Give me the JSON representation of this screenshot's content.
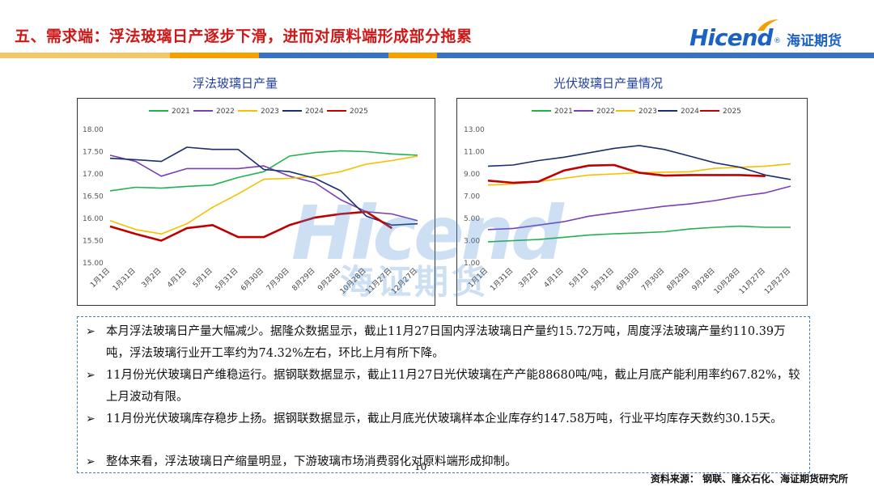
{
  "slide": {
    "title": "五、需求端：浮法玻璃日产逐步下滑，进而对原料端形成部分拖累",
    "page_number": "10",
    "source": "资料来源：  钢联、隆众石化、海证期货研究所"
  },
  "logo": {
    "text": "Hicend",
    "reg": "®",
    "cn": "海证期货"
  },
  "watermark": {
    "text": "Hicend",
    "cn": "海证期货"
  },
  "colors": {
    "s2021": "#22b24c",
    "s2022": "#7b3fb5",
    "s2023": "#f5c000",
    "s2024": "#1a2f6e",
    "s2025": "#c00000",
    "title_red": "#d01818",
    "accent_blue": "#1b62c4"
  },
  "chart_data": [
    {
      "type": "line",
      "title": "浮法玻璃日产量",
      "x": [
        "1月1日",
        "1月31日",
        "3月2日",
        "4月1日",
        "5月1日",
        "5月31日",
        "6月30日",
        "7月30日",
        "8月29日",
        "9月28日",
        "10月28日",
        "11月27日",
        "12月27日"
      ],
      "ylim": [
        15.0,
        18.0
      ],
      "yticks": [
        "15.00",
        "15.50",
        "16.00",
        "16.50",
        "17.00",
        "17.50",
        "18.00"
      ],
      "legend_position": "top",
      "grid": false,
      "series": [
        {
          "name": "2021",
          "color": "#22b24c",
          "values": [
            16.62,
            16.7,
            16.68,
            16.72,
            16.75,
            16.92,
            17.05,
            17.4,
            17.48,
            17.52,
            17.5,
            17.45,
            17.42
          ]
        },
        {
          "name": "2022",
          "color": "#7b3fb5",
          "values": [
            17.42,
            17.28,
            16.95,
            17.12,
            17.12,
            17.12,
            17.18,
            16.95,
            16.8,
            16.42,
            16.15,
            16.1,
            15.95
          ]
        },
        {
          "name": "2023",
          "color": "#f5c000",
          "values": [
            15.95,
            15.75,
            15.65,
            15.88,
            16.25,
            16.55,
            16.88,
            16.9,
            16.95,
            17.05,
            17.22,
            17.3,
            17.4
          ]
        },
        {
          "name": "2024",
          "color": "#1a2f6e",
          "values": [
            17.35,
            17.32,
            17.28,
            17.6,
            17.55,
            17.55,
            17.1,
            17.05,
            16.9,
            16.62,
            16.05,
            15.85,
            15.88
          ]
        },
        {
          "name": "2025",
          "color": "#c00000",
          "values": [
            15.82,
            15.65,
            15.5,
            15.78,
            15.85,
            15.58,
            15.58,
            15.85,
            16.02,
            16.1,
            16.15,
            15.78,
            null
          ]
        }
      ]
    },
    {
      "type": "line",
      "title": "光伏玻璃日产量情况",
      "x": [
        "1月1日",
        "1月31日",
        "3月2日",
        "4月1日",
        "5月1日",
        "5月31日",
        "6月30日",
        "7月30日",
        "8月29日",
        "9月28日",
        "10月28日",
        "11月27日",
        "12月27日"
      ],
      "ylim": [
        1.0,
        13.0
      ],
      "yticks": [
        "1.00",
        "3.00",
        "5.00",
        "7.00",
        "9.00",
        "11.00",
        "13.00"
      ],
      "legend_position": "top",
      "grid": false,
      "series": [
        {
          "name": "2021",
          "color": "#22b24c",
          "values": [
            2.9,
            3.0,
            3.1,
            3.3,
            3.5,
            3.62,
            3.7,
            3.8,
            4.05,
            4.2,
            4.3,
            4.2,
            4.2
          ]
        },
        {
          "name": "2022",
          "color": "#7b3fb5",
          "values": [
            4.0,
            4.1,
            4.4,
            4.7,
            5.2,
            5.5,
            5.8,
            6.1,
            6.3,
            6.6,
            7.0,
            7.3,
            7.9
          ]
        },
        {
          "name": "2023",
          "color": "#f5c000",
          "values": [
            8.0,
            8.1,
            8.3,
            8.6,
            8.9,
            9.0,
            9.1,
            9.15,
            9.2,
            9.5,
            9.6,
            9.7,
            9.9
          ]
        },
        {
          "name": "2024",
          "color": "#1a2f6e",
          "values": [
            9.7,
            9.8,
            10.2,
            10.5,
            10.9,
            11.3,
            11.55,
            11.2,
            10.6,
            10.0,
            9.6,
            8.9,
            8.5
          ]
        },
        {
          "name": "2025",
          "color": "#c00000",
          "values": [
            8.4,
            8.2,
            8.3,
            9.3,
            9.75,
            9.8,
            9.1,
            8.85,
            8.9,
            8.9,
            8.9,
            8.8,
            null
          ]
        }
      ]
    }
  ],
  "notes": [
    "本月浮法玻璃日产量大幅减少。据隆众数据显示，截止11月27日国内浮法玻璃日产量约15.72万吨，周度浮法玻璃产量约110.39万吨，浮法玻璃行业开工率约为74.32%左右，环比上月有所下降。",
    "11月份光伏玻璃日产维稳运行。据钢联数据显示，截止11月27日光伏玻璃在产产能88680吨/吨，截止月底产能利用率约67.82%，较上月波动有限。",
    "11月份光伏玻璃库存稳步上扬。据钢联数据显示，截止月底光伏玻璃样本企业库存约147.58万吨，行业平均库存天数约30.15天。",
    "整体来看，浮法玻璃日产缩量明显，下游玻璃市场消费弱化对原料端形成抑制。"
  ],
  "bullet_mark": "➢"
}
